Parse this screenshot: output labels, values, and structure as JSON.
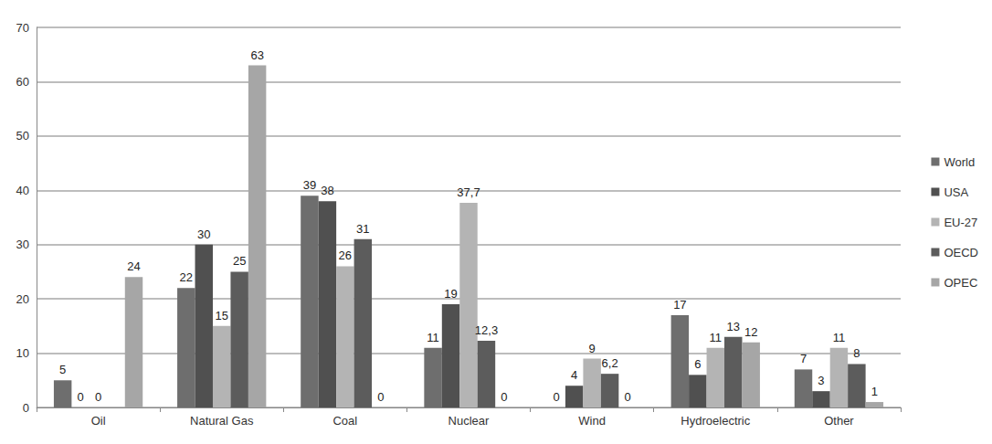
{
  "chart_data": {
    "type": "bar",
    "categories": [
      "Oil",
      "Natural Gas",
      "Coal",
      "Nuclear",
      "Wind",
      "Hydroelectric",
      "Other"
    ],
    "series": [
      {
        "name": "World",
        "color": "#6e6e6e",
        "values": [
          5,
          22,
          39,
          11,
          0,
          17,
          7
        ]
      },
      {
        "name": "USA",
        "color": "#505050",
        "values": [
          0,
          30,
          38,
          19,
          4,
          6,
          3
        ]
      },
      {
        "name": "EU-27",
        "color": "#b4b4b4",
        "values": [
          0,
          15,
          26,
          37.7,
          9,
          11,
          11
        ],
        "value_labels": [
          "0",
          "15",
          "26",
          "37,7",
          "9",
          "11",
          "11"
        ]
      },
      {
        "name": "OECD",
        "color": "#5c5c5c",
        "values": [
          null,
          25,
          31,
          12.3,
          6.2,
          13,
          8
        ],
        "value_labels": [
          null,
          "25",
          "31",
          "12,3",
          "6,2",
          "13",
          "8"
        ]
      },
      {
        "name": "OPEC",
        "color": "#a6a6a6",
        "values": [
          24,
          63,
          0,
          0,
          0,
          12,
          1
        ]
      }
    ],
    "ylim": [
      0,
      70
    ],
    "yticks": [
      0,
      10,
      20,
      30,
      40,
      50,
      60,
      70
    ],
    "grid": true,
    "legend": "right",
    "data_labels": true
  }
}
